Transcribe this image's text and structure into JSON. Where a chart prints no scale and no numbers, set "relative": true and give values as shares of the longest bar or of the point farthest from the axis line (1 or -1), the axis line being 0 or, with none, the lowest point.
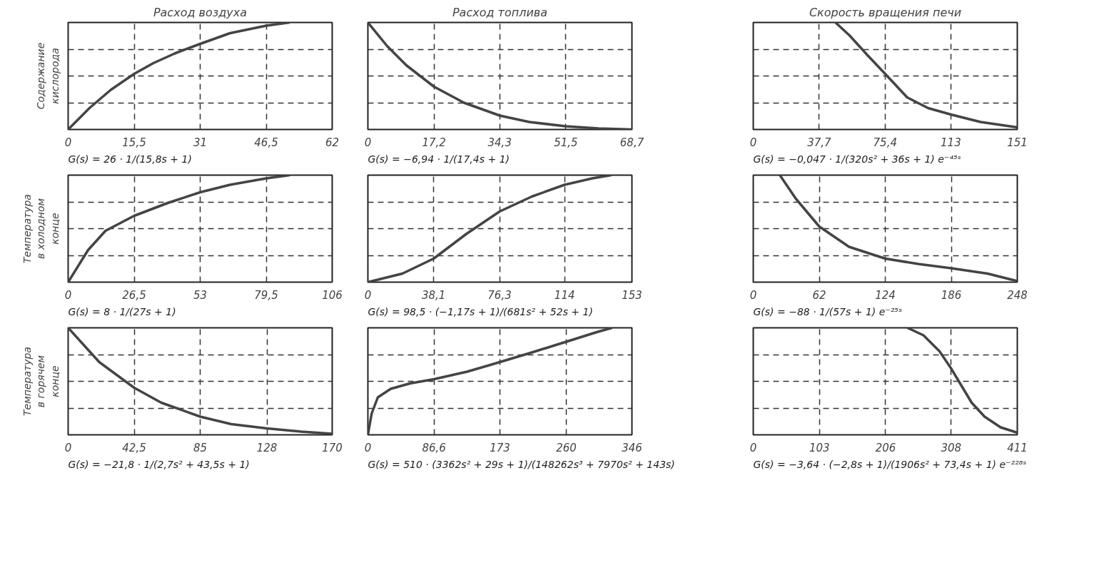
{
  "chart_data": [
    {
      "type": "line",
      "title": "Расход воздуха",
      "ylabel": "Содержание кислорода",
      "relative": true,
      "grid": true,
      "tick_labels": "x",
      "xlim": [
        0,
        62
      ],
      "xticks": [
        0,
        {
          "value": 15.5,
          "label": "15,5"
        },
        31,
        {
          "value": 46.5,
          "label": "46,5"
        },
        62
      ],
      "annotations": [
        "G(s) = 26 · 1/(15,8s + 1)"
      ],
      "series": [
        {
          "color": "#444444",
          "x": [
            0,
            5,
            10,
            15.5,
            20,
            25,
            31,
            38,
            46.5,
            52
          ],
          "values": [
            0,
            0.2,
            0.37,
            0.52,
            0.62,
            0.71,
            0.8,
            0.9,
            0.97,
            1.0
          ]
        }
      ]
    },
    {
      "type": "line",
      "title": "Расход топлива",
      "relative": true,
      "grid": true,
      "tick_labels": "x",
      "xlim": [
        0,
        68.7
      ],
      "xticks": [
        0,
        {
          "value": 17.2,
          "label": "17,2"
        },
        {
          "value": 34.3,
          "label": "34,3"
        },
        {
          "value": 51.5,
          "label": "51,5"
        },
        {
          "value": 68.7,
          "label": "68,7"
        }
      ],
      "annotations": [
        "G(s) = −6,94 · 1/(17,4s + 1)"
      ],
      "series": [
        {
          "color": "#444444",
          "x": [
            0,
            5,
            10,
            17.2,
            25,
            34.3,
            42,
            51.5,
            60,
            68.7
          ],
          "values": [
            1,
            0.78,
            0.6,
            0.4,
            0.25,
            0.13,
            0.07,
            0.03,
            0.01,
            0
          ]
        }
      ]
    },
    {
      "type": "line",
      "title": "Скорость вращения печи",
      "relative": true,
      "grid": true,
      "tick_labels": "x",
      "xlim": [
        0,
        151
      ],
      "xticks": [
        0,
        {
          "value": 37.7,
          "label": "37,7"
        },
        {
          "value": 75.4,
          "label": "75,4"
        },
        113,
        151
      ],
      "annotations": [
        "G(s) = −0,047 · 1/(320s² + 36s + 1) e⁻⁴⁵ˢ"
      ],
      "series": [
        {
          "color": "#444444",
          "x": [
            47,
            55,
            65,
            76,
            88,
            100,
            113,
            130,
            151
          ],
          "values": [
            1,
            0.88,
            0.7,
            0.51,
            0.3,
            0.2,
            0.14,
            0.07,
            0.02
          ]
        }
      ]
    },
    {
      "type": "line",
      "ylabel": "Температура в холодном конце",
      "relative": true,
      "grid": true,
      "tick_labels": "x",
      "xlim": [
        0,
        106
      ],
      "xticks": [
        0,
        {
          "value": 26.5,
          "label": "26,5"
        },
        53,
        {
          "value": 79.5,
          "label": "79,5"
        },
        106
      ],
      "annotations": [
        "G(s) = 8 · 1/(27s + 1)"
      ],
      "series": [
        {
          "color": "#444444",
          "x": [
            0,
            8,
            15,
            26.5,
            40,
            53,
            65,
            79.5,
            89
          ],
          "values": [
            0,
            0.3,
            0.48,
            0.62,
            0.74,
            0.84,
            0.91,
            0.97,
            1.0
          ]
        }
      ]
    },
    {
      "type": "line",
      "relative": true,
      "grid": true,
      "tick_labels": "x",
      "xlim": [
        0,
        153
      ],
      "xticks": [
        0,
        {
          "value": 38.1,
          "label": "38,1"
        },
        {
          "value": 76.3,
          "label": "76,3"
        },
        114,
        153
      ],
      "annotations": [
        "G(s) = 98,5 · (−1,17s + 1)/(681s² + 52s + 1)"
      ],
      "series": [
        {
          "color": "#444444",
          "x": [
            0,
            20,
            38.1,
            57,
            76.3,
            95,
            114,
            130,
            141
          ],
          "values": [
            0,
            0.08,
            0.22,
            0.45,
            0.66,
            0.8,
            0.91,
            0.97,
            1.0
          ]
        }
      ]
    },
    {
      "type": "line",
      "relative": true,
      "grid": true,
      "tick_labels": "x",
      "xlim": [
        0,
        248
      ],
      "xticks": [
        0,
        62,
        124,
        186,
        248
      ],
      "annotations": [
        "G(s) = −88 · 1/(57s + 1) e⁻²⁵ˢ"
      ],
      "series": [
        {
          "color": "#444444",
          "x": [
            25,
            40,
            62,
            90,
            124,
            155,
            186,
            220,
            248
          ],
          "values": [
            1,
            0.78,
            0.52,
            0.33,
            0.22,
            0.17,
            0.13,
            0.08,
            0.01
          ]
        }
      ]
    },
    {
      "type": "line",
      "ylabel": "Температура в горячем конце",
      "relative": true,
      "grid": true,
      "tick_labels": "x",
      "xlim": [
        0,
        170
      ],
      "xticks": [
        0,
        {
          "value": 42.5,
          "label": "42,5"
        },
        85,
        128,
        170
      ],
      "annotations": [
        "G(s) = −21,8 · 1/(2,7s² + 43,5s + 1)"
      ],
      "series": [
        {
          "color": "#444444",
          "x": [
            0,
            20,
            42.5,
            60,
            85,
            105,
            128,
            150,
            170
          ],
          "values": [
            1,
            0.68,
            0.44,
            0.3,
            0.17,
            0.1,
            0.06,
            0.03,
            0.01
          ]
        }
      ]
    },
    {
      "type": "line",
      "relative": true,
      "grid": true,
      "tick_labels": "x",
      "xlim": [
        0,
        346
      ],
      "xticks": [
        0,
        {
          "value": 86.6,
          "label": "86,6"
        },
        173,
        260,
        346
      ],
      "annotations": [
        "G(s) = 510 · (3362s² + 29s + 1)/(148262s³ + 7970s² + 143s)"
      ],
      "series": [
        {
          "color": "#444444",
          "x": [
            0,
            5,
            13,
            30,
            55,
            86.6,
            130,
            173,
            215,
            260,
            300,
            320
          ],
          "values": [
            0,
            0.2,
            0.35,
            0.43,
            0.48,
            0.52,
            0.59,
            0.68,
            0.77,
            0.87,
            0.96,
            1.0
          ]
        }
      ]
    },
    {
      "type": "line",
      "relative": true,
      "grid": true,
      "tick_labels": "x",
      "xlim": [
        0,
        411
      ],
      "xticks": [
        0,
        103,
        206,
        308,
        411
      ],
      "annotations": [
        "G(s) = −3,64 · (−2,8s + 1)/(1906s² + 73,4s + 1) e⁻²²⁸ˢ"
      ],
      "series": [
        {
          "color": "#444444",
          "x": [
            240,
            265,
            290,
            308,
            325,
            340,
            360,
            385,
            411
          ],
          "values": [
            1,
            0.93,
            0.78,
            0.62,
            0.45,
            0.3,
            0.17,
            0.07,
            0.02
          ]
        }
      ]
    }
  ]
}
